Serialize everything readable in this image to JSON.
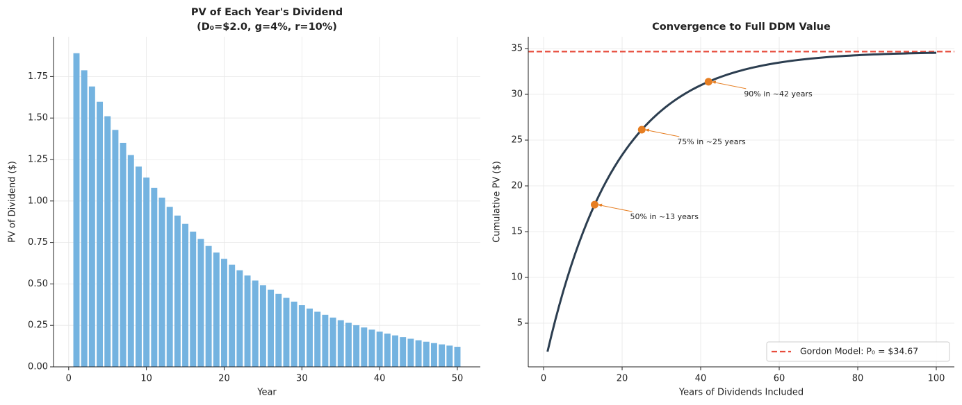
{
  "chart_data": [
    {
      "type": "bar",
      "title": [
        "PV of Each Year's Dividend",
        "(D₀=$2.0, g=4%, r=10%)"
      ],
      "xlabel": "Year",
      "ylabel": "PV of Dividend ($)",
      "color": "#74b3e0",
      "x": [
        1,
        2,
        3,
        4,
        5,
        6,
        7,
        8,
        9,
        10,
        11,
        12,
        13,
        14,
        15,
        16,
        17,
        18,
        19,
        20,
        21,
        22,
        23,
        24,
        25,
        26,
        27,
        28,
        29,
        30,
        31,
        32,
        33,
        34,
        35,
        36,
        37,
        38,
        39,
        40,
        41,
        42,
        43,
        44,
        45,
        46,
        47,
        48,
        49,
        50
      ],
      "values": [
        1.8909,
        1.7878,
        1.6903,
        1.5981,
        1.5109,
        1.4285,
        1.3506,
        1.2769,
        1.2073,
        1.1414,
        1.0792,
        1.0203,
        0.9647,
        0.9121,
        0.8623,
        0.8153,
        0.7708,
        0.7288,
        0.689,
        0.6514,
        0.6159,
        0.5823,
        0.5506,
        0.5205,
        0.4921,
        0.4653,
        0.4399,
        0.4159,
        0.3932,
        0.3718,
        0.3515,
        0.3323,
        0.3142,
        0.2971,
        0.2809,
        0.2655,
        0.2511,
        0.2374,
        0.2244,
        0.2122,
        0.2006,
        0.1897,
        0.1793,
        0.1695,
        0.1603,
        0.1516,
        0.1433,
        0.1355,
        0.1281,
        0.1211
      ],
      "xlim": [
        -1.95,
        52.95
      ],
      "ylim": [
        0,
        1.99
      ],
      "xticks": [
        0,
        10,
        20,
        30,
        40,
        50
      ],
      "yticks": [
        {
          "value": 0,
          "label": "0.00"
        },
        {
          "value": 0.25,
          "label": "0.25"
        },
        {
          "value": 0.5,
          "label": "0.50"
        },
        {
          "value": 0.75,
          "label": "0.75"
        },
        {
          "value": 1,
          "label": "1.00"
        },
        {
          "value": 1.25,
          "label": "1.25"
        },
        {
          "value": 1.5,
          "label": "1.50"
        },
        {
          "value": 1.75,
          "label": "1.75"
        }
      ],
      "grid": true
    },
    {
      "type": "line",
      "title": "Convergence to Full DDM Value",
      "xlabel": "Years of Dividends Included",
      "ylabel": "Cumulative PV ($)",
      "color": "#2c3e50",
      "x": [
        1,
        2,
        3,
        4,
        5,
        6,
        7,
        8,
        9,
        10,
        11,
        12,
        13,
        14,
        15,
        16,
        17,
        18,
        19,
        20,
        21,
        22,
        23,
        24,
        25,
        26,
        27,
        28,
        29,
        30,
        31,
        32,
        33,
        34,
        35,
        36,
        37,
        38,
        39,
        40,
        41,
        42,
        43,
        44,
        45,
        46,
        47,
        48,
        49,
        50,
        51,
        52,
        53,
        54,
        55,
        56,
        57,
        58,
        59,
        60,
        61,
        62,
        63,
        64,
        65,
        66,
        67,
        68,
        69,
        70,
        71,
        72,
        73,
        74,
        75,
        76,
        77,
        78,
        79,
        80,
        81,
        82,
        83,
        84,
        85,
        86,
        87,
        88,
        89,
        90,
        91,
        92,
        93,
        94,
        95,
        96,
        97,
        98,
        99,
        100
      ],
      "values": [
        1.891,
        3.678,
        5.368,
        6.966,
        8.478,
        9.906,
        11.256,
        12.534,
        13.74,
        14.882,
        15.96,
        16.981,
        17.945,
        18.857,
        19.72,
        20.535,
        21.306,
        22.034,
        22.724,
        23.376,
        23.991,
        24.573,
        25.123,
        25.645,
        26.137,
        26.601,
        27.042,
        27.458,
        27.851,
        28.222,
        28.574,
        28.907,
        29.22,
        29.517,
        29.798,
        30.065,
        30.314,
        30.552,
        30.777,
        30.988,
        31.19,
        31.379,
        31.559,
        31.729,
        31.888,
        32.039,
        32.183,
        32.318,
        32.446,
        32.568,
        32.683,
        32.791,
        32.893,
        32.99,
        33.081,
        33.168,
        33.25,
        33.327,
        33.4,
        33.469,
        33.534,
        33.596,
        33.654,
        33.709,
        33.762,
        33.811,
        33.858,
        33.902,
        33.944,
        33.983,
        34.02,
        34.056,
        34.089,
        34.12,
        34.15,
        34.178,
        34.205,
        34.23,
        34.254,
        34.276,
        34.297,
        34.317,
        34.336,
        34.355,
        34.371,
        34.388,
        34.403,
        34.417,
        34.431,
        34.444,
        34.456,
        34.467,
        34.478,
        34.489,
        34.498,
        34.507,
        34.516,
        34.524,
        34.532,
        34.54
      ],
      "reference_line": {
        "y": 34.67,
        "label": "Gordon Model: P₀ = $34.67",
        "color": "#e74c3c"
      },
      "annotations": [
        {
          "text": "50% in ~13 years",
          "x": 13,
          "y": 17.945
        },
        {
          "text": "75% in ~25 years",
          "x": 25,
          "y": 26.137
        },
        {
          "text": "90% in ~42 years",
          "x": 42,
          "y": 31.379
        }
      ],
      "marker_color": "#e67e22",
      "xlim": [
        -3.9,
        104.6
      ],
      "ylim": [
        0.23,
        36.29
      ],
      "xticks": [
        0,
        20,
        40,
        60,
        80,
        100
      ],
      "yticks": [
        5,
        10,
        15,
        20,
        25,
        30,
        35
      ],
      "grid": true,
      "legend": "lower right"
    }
  ]
}
